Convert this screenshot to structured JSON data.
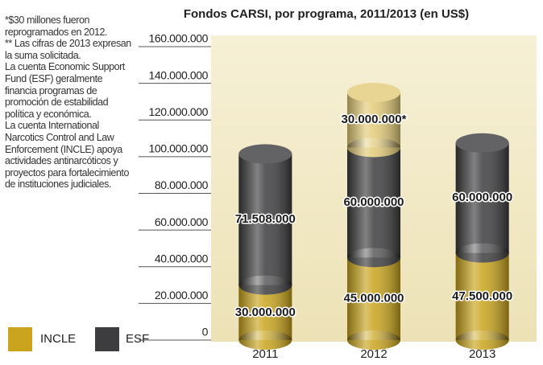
{
  "chart_data": {
    "type": "stacked-cylinder-bar",
    "title": "Fondos CARSI, por programa, 2011/2013 (en US$)",
    "notes": [
      "*$30 millones fueron reprogramados en 2012.",
      "** Las cifras de 2013 expresan la suma solicitada.",
      "La cuenta Economic Support Fund (ESF) geralmente financia programas de promoción de estabilidad política y económica.",
      "La cuenta International Narcotics Control and Law Enforcement (INCLE) apoya actividades antinarcóticos y proyectos para fortalecimiento de instituciones judiciales."
    ],
    "categories": [
      "2011",
      "2012",
      "2013"
    ],
    "series": [
      {
        "name": "INCLE",
        "color": "#c9a41c",
        "values": [
          30000000,
          45000000,
          47500000
        ],
        "value_labels": [
          "30.000.000",
          "45.000.000",
          "47.500.000"
        ]
      },
      {
        "name": "ESF",
        "color": "#3d3d3f",
        "values": [
          71508000,
          60000000,
          60000000
        ],
        "value_labels": [
          "71.508.000",
          "60.000.000",
          "60.000.000"
        ]
      },
      {
        "color": "#e3cb78",
        "values": [
          null,
          30000000,
          null
        ],
        "value_labels": [
          null,
          "30.000.000*",
          null
        ]
      }
    ],
    "ylim": [
      0,
      160000000
    ],
    "yticks": [
      0,
      {
        "value": 20000000,
        "label": "20.000.000"
      },
      {
        "value": 40000000,
        "label": "40.000.000"
      },
      {
        "value": 60000000,
        "label": "60.000.000"
      },
      {
        "value": 80000000,
        "label": "80.000.000"
      },
      {
        "value": 100000000,
        "label": "100.000.000"
      },
      {
        "value": 120000000,
        "label": "120.000.000"
      },
      {
        "value": 140000000,
        "label": "140.000.000"
      },
      {
        "value": 160000000,
        "label": "160.000.000"
      }
    ],
    "legend": "bottom-left"
  }
}
